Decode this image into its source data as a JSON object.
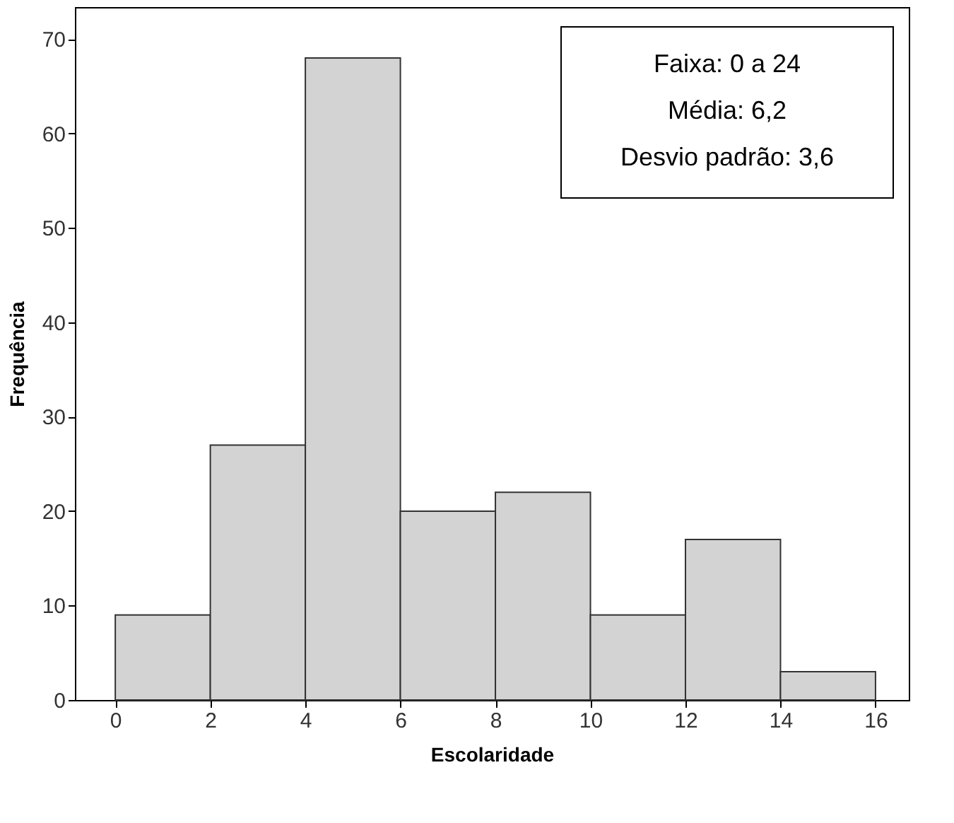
{
  "chart_data": {
    "type": "histogram",
    "xlabel": "Escolaridade",
    "ylabel": "Frequência",
    "bins": [
      0,
      2,
      4,
      6,
      8,
      10,
      12,
      14,
      16
    ],
    "values": [
      9,
      27,
      68,
      20,
      22,
      9,
      17,
      3
    ],
    "color": "#d3d3d3",
    "xlim": [
      -0.85,
      16.7
    ],
    "xticks": [
      0,
      2,
      4,
      6,
      8,
      10,
      12,
      14,
      16
    ],
    "ylim": [
      0,
      73.4
    ],
    "yticks": [
      0,
      10,
      20,
      30,
      40,
      50,
      60,
      70
    ],
    "grid": false,
    "annotations": [
      "Faixa: 0 a 24",
      "Média: 6,2",
      "Desvio padrão: 3,6"
    ]
  }
}
